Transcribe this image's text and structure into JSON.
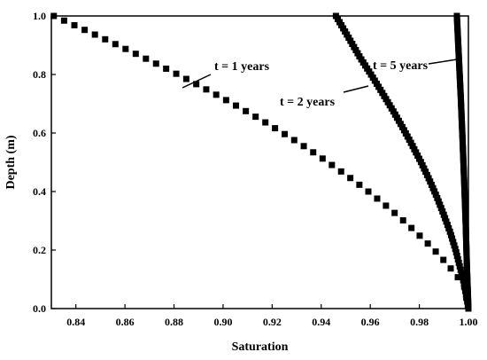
{
  "chart_data": {
    "type": "scatter",
    "xlabel": "Saturation",
    "ylabel": "Depth (m)",
    "xlim": [
      0.83,
      1.0
    ],
    "ylim": [
      0.0,
      1.0
    ],
    "xticks": [
      "0.84",
      "0.86",
      "0.88",
      "0.90",
      "0.92",
      "0.94",
      "0.96",
      "0.98",
      "1.00"
    ],
    "yticks": [
      "0.0",
      "0.2",
      "0.4",
      "0.6",
      "0.8",
      "1.0"
    ],
    "grid": false,
    "marker": "square",
    "color": "#000000",
    "series": [
      {
        "name": "t = 1 years",
        "x": [
          0.831,
          0.8416,
          0.852,
          0.8621,
          0.872,
          0.8815,
          0.8907,
          0.8996,
          0.9082,
          0.9165,
          0.9244,
          0.932,
          0.9393,
          0.9462,
          0.9529,
          0.9592,
          0.9652,
          0.9709,
          0.9762,
          0.9813,
          0.9861,
          0.9905,
          0.9945,
          0.9982,
          1.0
        ],
        "y": [
          1.0,
          0.96,
          0.92,
          0.88,
          0.84,
          0.8,
          0.76,
          0.72,
          0.68,
          0.64,
          0.6,
          0.56,
          0.52,
          0.48,
          0.44,
          0.4,
          0.36,
          0.32,
          0.28,
          0.24,
          0.2,
          0.16,
          0.12,
          0.08,
          0.0
        ]
      },
      {
        "name": "t = 2 years",
        "x": [
          0.946,
          0.9509,
          0.9557,
          0.9603,
          0.9647,
          0.969,
          0.9731,
          0.977,
          0.9807,
          0.9841,
          0.9872,
          0.99,
          0.9926,
          0.9948,
          0.9966,
          0.9981,
          0.9992,
          1.0
        ],
        "y": [
          1.0,
          0.93,
          0.86,
          0.8,
          0.74,
          0.68,
          0.62,
          0.56,
          0.5,
          0.44,
          0.38,
          0.32,
          0.26,
          0.2,
          0.14,
          0.09,
          0.04,
          0.0
        ]
      },
      {
        "name": "t = 5 years",
        "x": [
          0.9953,
          0.9961,
          0.9969,
          0.9976,
          0.9983,
          0.9989,
          0.9994,
          1.0
        ],
        "y": [
          1.0,
          0.86,
          0.72,
          0.58,
          0.43,
          0.29,
          0.14,
          0.0
        ]
      }
    ]
  }
}
